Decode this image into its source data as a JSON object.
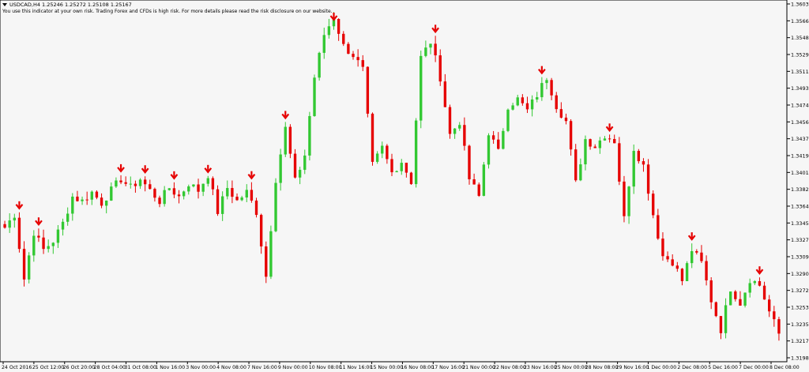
{
  "header": {
    "menu_icon": "triangle-down-icon",
    "symbol_line": "USDCAD,H4  1.25246 1.25272 1.25108 1.25167",
    "disclaimer": "You use this indicator at your own risk. Trading Forex and CFDs is high risk. For more details please read the risk disclosure on our website."
  },
  "colors": {
    "background": "#f6f6f6",
    "bull": "#32c832",
    "bear": "#e60000",
    "arrow": "#e60000",
    "axis": "#000000"
  },
  "chart_data": {
    "type": "candlestick",
    "symbol": "USDCAD",
    "timeframe": "H4",
    "ylim": [
      1.31985,
      1.36035
    ],
    "y_ticks": [
      "1.36035",
      "1.35665",
      "1.35480",
      "1.35295",
      "1.35115",
      "1.34930",
      "1.34745",
      "1.34560",
      "1.34375",
      "1.34190",
      "1.34010",
      "1.33825",
      "1.33640",
      "1.33455",
      "1.33270",
      "1.33090",
      "1.32905",
      "1.32720",
      "1.32535",
      "1.32350",
      "1.32170",
      "1.31985"
    ],
    "x_ticks": [
      "24 Oct 2016",
      "25 Oct 12:00",
      "26 Oct 20:00",
      "28 Oct 04:00",
      "31 Oct 08:00",
      "1 Nov 16:00",
      "3 Nov 00:00",
      "4 Nov 08:00",
      "7 Nov 16:00",
      "9 Nov 00:00",
      "10 Nov 08:00",
      "11 Nov 16:00",
      "15 Nov 00:00",
      "16 Nov 08:00",
      "17 Nov 16:00",
      "21 Nov 00:00",
      "22 Nov 08:00",
      "23 Nov 16:00",
      "25 Nov 00:00",
      "28 Nov 08:00",
      "29 Nov 16:00",
      "1 Dec 00:00",
      "2 Dec 08:00",
      "5 Dec 16:00",
      "7 Dec 00:00",
      "8 Dec 08:00"
    ],
    "waypoints": [
      [
        0,
        1.335
      ],
      [
        2,
        1.3365
      ],
      [
        4,
        1.3292
      ],
      [
        6,
        1.3345
      ],
      [
        8,
        1.3325
      ],
      [
        10,
        1.3335
      ],
      [
        12,
        1.3355
      ],
      [
        14,
        1.3385
      ],
      [
        16,
        1.338
      ],
      [
        18,
        1.339
      ],
      [
        20,
        1.3378
      ],
      [
        22,
        1.3392
      ],
      [
        24,
        1.3405
      ],
      [
        26,
        1.3395
      ],
      [
        28,
        1.3405
      ],
      [
        30,
        1.3392
      ],
      [
        32,
        1.338
      ],
      [
        34,
        1.3395
      ],
      [
        36,
        1.3385
      ],
      [
        38,
        1.34
      ],
      [
        40,
        1.3392
      ],
      [
        42,
        1.341
      ],
      [
        44,
        1.3368
      ],
      [
        46,
        1.3395
      ],
      [
        48,
        1.338
      ],
      [
        50,
        1.339
      ],
      [
        52,
        1.3368
      ],
      [
        54,
        1.3295
      ],
      [
        56,
        1.3405
      ],
      [
        58,
        1.3462
      ],
      [
        60,
        1.3402
      ],
      [
        62,
        1.3432
      ],
      [
        64,
        1.352
      ],
      [
        66,
        1.3568
      ],
      [
        68,
        1.3588
      ],
      [
        70,
        1.3555
      ],
      [
        72,
        1.3545
      ],
      [
        74,
        1.3528
      ],
      [
        76,
        1.342
      ],
      [
        78,
        1.344
      ],
      [
        80,
        1.3412
      ],
      [
        82,
        1.3425
      ],
      [
        84,
        1.3402
      ],
      [
        86,
        1.3542
      ],
      [
        88,
        1.356
      ],
      [
        90,
        1.352
      ],
      [
        92,
        1.3455
      ],
      [
        94,
        1.347
      ],
      [
        96,
        1.3405
      ],
      [
        98,
        1.3385
      ],
      [
        100,
        1.3458
      ],
      [
        102,
        1.3435
      ],
      [
        104,
        1.3488
      ],
      [
        106,
        1.3495
      ],
      [
        108,
        1.3482
      ],
      [
        110,
        1.35
      ],
      [
        112,
        1.352
      ],
      [
        114,
        1.3488
      ],
      [
        116,
        1.347
      ],
      [
        118,
        1.34
      ],
      [
        120,
        1.345
      ],
      [
        122,
        1.3442
      ],
      [
        124,
        1.3455
      ],
      [
        126,
        1.3448
      ],
      [
        128,
        1.336
      ],
      [
        130,
        1.344
      ],
      [
        132,
        1.342
      ],
      [
        134,
        1.3365
      ],
      [
        136,
        1.3318
      ],
      [
        138,
        1.3312
      ],
      [
        140,
        1.329
      ],
      [
        142,
        1.3325
      ],
      [
        144,
        1.331
      ],
      [
        146,
        1.3268
      ],
      [
        148,
        1.3235
      ],
      [
        150,
        1.3282
      ],
      [
        152,
        1.3265
      ],
      [
        154,
        1.3292
      ],
      [
        156,
        1.3285
      ],
      [
        158,
        1.3255
      ],
      [
        160,
        1.323
      ]
    ],
    "signal_arrows": [
      "down",
      "down",
      "down",
      "down",
      "down",
      "down",
      "down",
      "down",
      "down",
      "down",
      "down",
      "down",
      "down",
      "down",
      "down",
      "down",
      "down",
      "down",
      "down",
      "down",
      "down",
      "down"
    ]
  }
}
